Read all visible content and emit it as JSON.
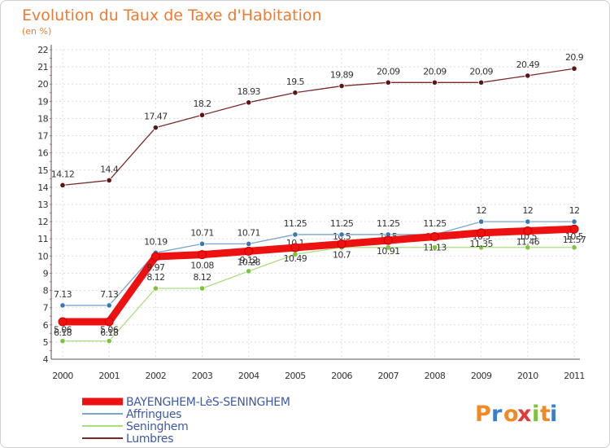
{
  "chart_data": {
    "type": "line",
    "title": "Evolution du Taux de Taxe d'Habitation",
    "subtitle": "(en %)",
    "xlabel": "",
    "ylabel": "",
    "categories": [
      "2000",
      "2001",
      "2002",
      "2003",
      "2004",
      "2005",
      "2006",
      "2007",
      "2008",
      "2009",
      "2010",
      "2011"
    ],
    "ylim": [
      4,
      22
    ],
    "yticks": [
      "4",
      "5",
      "6",
      "7",
      "8",
      "9",
      "10",
      "11",
      "12",
      "13",
      "14",
      "15",
      "16",
      "17",
      "18",
      "19",
      "20",
      "21",
      "22"
    ],
    "legend_position": "bottom-left",
    "series": [
      {
        "name": "Lumbres",
        "color": "#7a2a2a",
        "marker_color": "#5c1414",
        "values": [
          14.12,
          14.4,
          17.47,
          18.2,
          18.93,
          19.5,
          19.89,
          20.09,
          20.09,
          20.09,
          20.49,
          20.9
        ],
        "labels": [
          "14.12",
          "14.4",
          "17.47",
          "18.2",
          "18.93",
          "19.5",
          "19.89",
          "20.09",
          "20.09",
          "20.09",
          "20.49",
          "20.9"
        ]
      },
      {
        "name": "Seninghem",
        "color": "#a8e080",
        "marker_color": "#7cc43a",
        "values": [
          5.06,
          5.06,
          8.12,
          8.12,
          9.12,
          10.1,
          10.5,
          10.5,
          10.5,
          10.5,
          10.5,
          10.5
        ],
        "labels": [
          "5.06",
          "5.06",
          "8.12",
          "8.12",
          "9.12",
          "10.1",
          "10.5",
          "10.5",
          "10.5",
          "10.5",
          "10.5",
          "10.5"
        ]
      },
      {
        "name": "Affringues",
        "color": "#7aa6cc",
        "marker_color": "#3a78b4",
        "values": [
          7.13,
          7.13,
          10.19,
          10.71,
          10.71,
          11.25,
          11.25,
          11.25,
          11.25,
          12,
          12,
          12
        ],
        "labels": [
          "7.13",
          "7.13",
          "10.19",
          "10.71",
          "10.71",
          "11.25",
          "11.25",
          "11.25",
          "11.25",
          "12",
          "12",
          "12"
        ]
      },
      {
        "name": "BAYENGHEM-LèS-SENINGHEM",
        "color": "#ee1111",
        "marker_color": "#cc0000",
        "values": [
          6.18,
          6.18,
          9.97,
          10.08,
          10.28,
          10.49,
          10.7,
          10.91,
          11.13,
          11.35,
          11.46,
          11.57
        ],
        "labels": [
          "6.18",
          "6.18",
          "9.97",
          "10.08",
          "10.28",
          "10.49",
          "10.7",
          "10.91",
          "11.13",
          "11.35",
          "11.46",
          "11.57"
        ]
      }
    ],
    "legend": [
      "BAYENGHEM-LèS-SENINGHEM",
      "Affringues",
      "Seninghem",
      "Lumbres"
    ]
  },
  "logo": {
    "letters": [
      "P",
      "r",
      "o",
      "x",
      "i",
      "t",
      "i"
    ],
    "colors": [
      "#f08a24",
      "#3a7fcf",
      "#f08a24",
      "#e23a3a",
      "#7cc43a",
      "#f08a24",
      "#3a7fcf"
    ]
  }
}
